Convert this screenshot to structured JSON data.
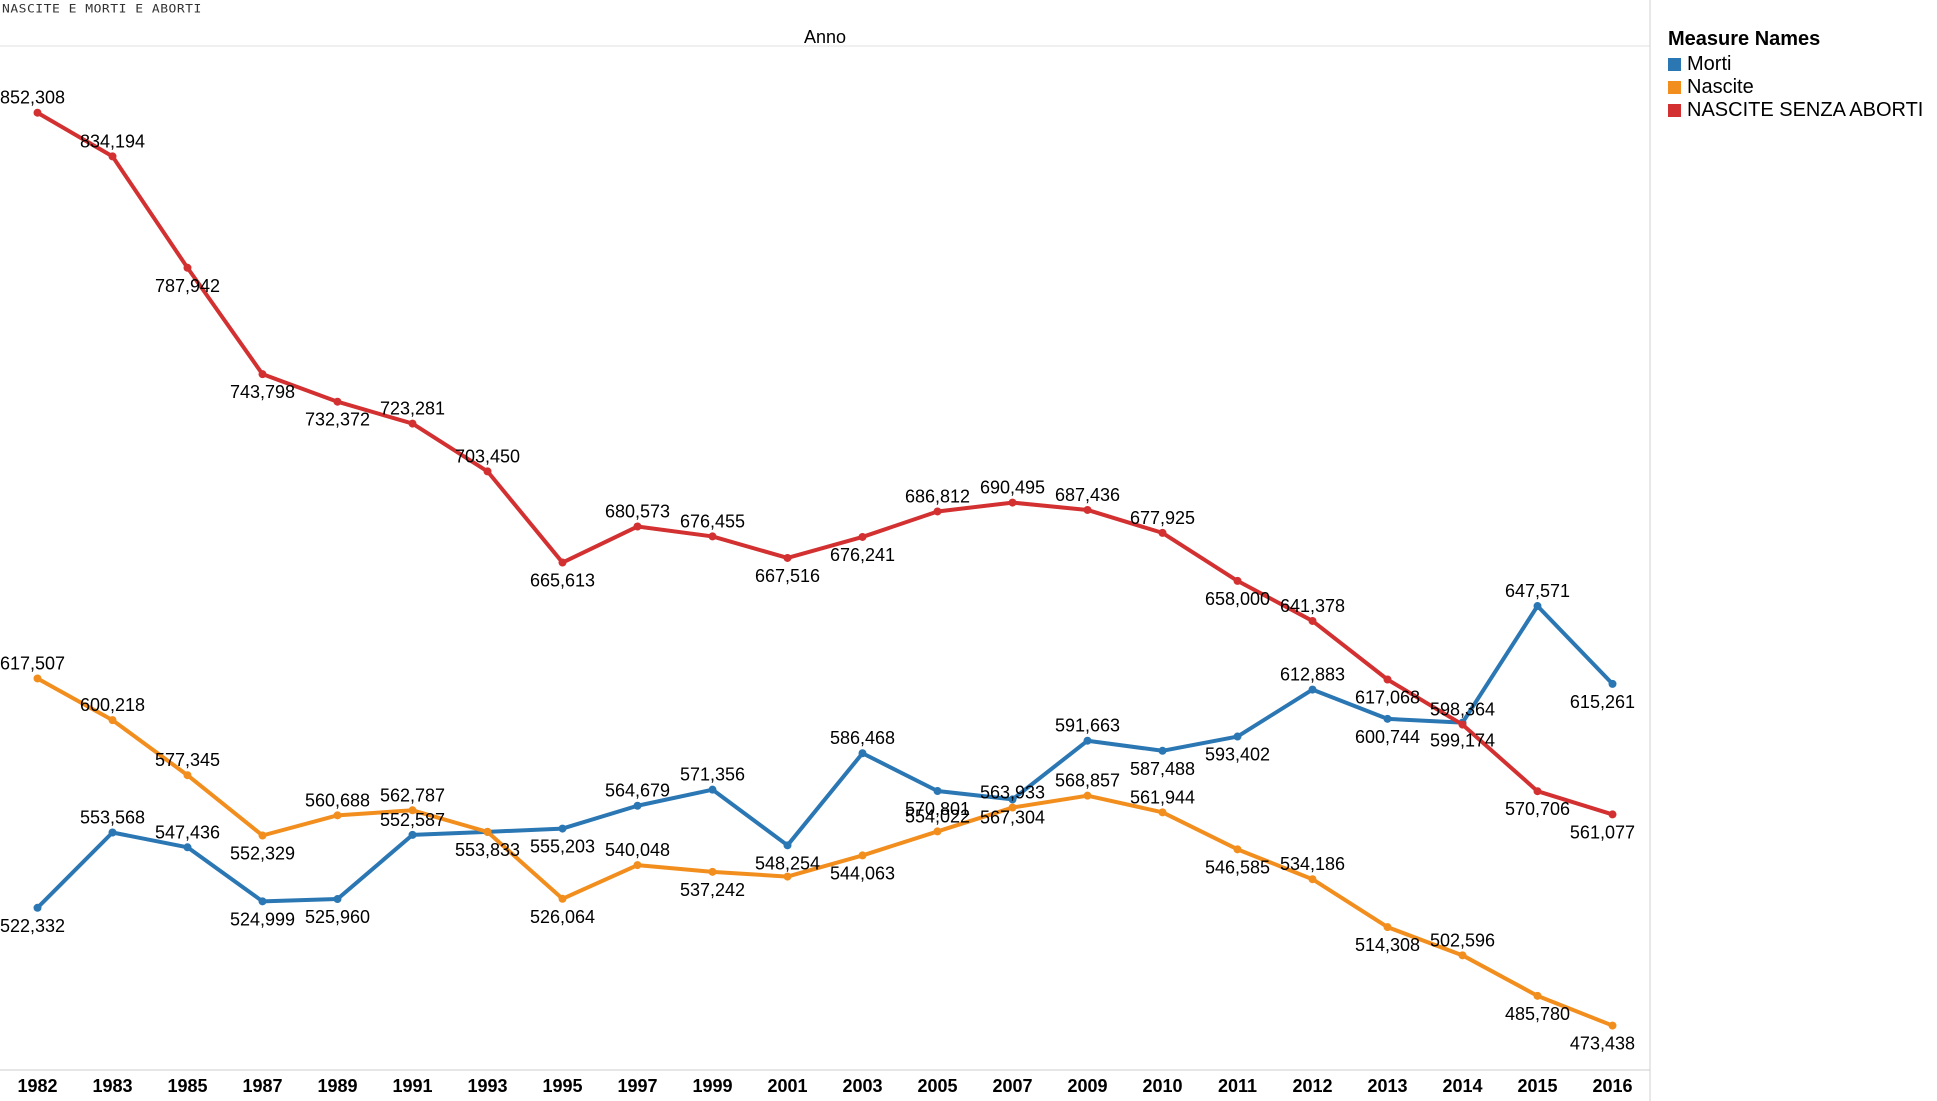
{
  "sheet_title": "NASCITE E MORTI E ABORTI",
  "chart_data": {
    "type": "line",
    "title": "",
    "column_header": "Anno",
    "xlabel": "Anno",
    "ylabel": "",
    "x": [
      "1982",
      "1983",
      "1985",
      "1987",
      "1989",
      "1991",
      "1993",
      "1995",
      "1997",
      "1999",
      "2001",
      "2003",
      "2005",
      "2007",
      "2009",
      "2010",
      "2011",
      "2012",
      "2013",
      "2014",
      "2015",
      "2016"
    ],
    "ylim": [
      455000,
      880000
    ],
    "grid": false,
    "legend_position": "top-right",
    "legend_title": "Measure Names",
    "series": [
      {
        "name": "Morti",
        "color": "#2a77b4",
        "values": [
          522332,
          553568,
          547436,
          524999,
          525960,
          552587,
          553833,
          555203,
          564679,
          571356,
          548254,
          586468,
          570801,
          567304,
          591663,
          587488,
          593402,
          612883,
          600744,
          599174,
          647571,
          615261
        ],
        "labels": [
          "522,332",
          "553,568",
          "547,436",
          "524,999",
          "525,960",
          "552,587",
          "553,833",
          "555,203",
          "564,679",
          "571,356",
          "548,254",
          "586,468",
          "570,801",
          "567,304",
          "591,663",
          "587,488",
          "593,402",
          "612,883",
          "600,744",
          "599,174",
          "647,571",
          "615,261"
        ]
      },
      {
        "name": "Nascite",
        "color": "#f28e1d",
        "values": [
          617507,
          600218,
          577345,
          552329,
          560688,
          562787,
          553833,
          526064,
          540048,
          537242,
          535282,
          544063,
          554022,
          563933,
          568857,
          561944,
          546585,
          534186,
          514308,
          502596,
          485780,
          473438
        ],
        "labels": [
          "617,507",
          "600,218",
          "577,345",
          "552,329",
          "560,688",
          "562,787",
          "",
          "526,064",
          "540,048",
          "537,242",
          "",
          "544,063",
          "554,022",
          "563,933",
          "568,857",
          "561,944",
          "546,585",
          "534,186",
          "514,308",
          "502,596",
          "485,780",
          "473,438"
        ]
      },
      {
        "name": "NASCITE SENZA ABORTI",
        "color": "#d33131",
        "values": [
          852308,
          834194,
          787942,
          743798,
          732372,
          723281,
          703450,
          665613,
          680573,
          676455,
          667516,
          676241,
          686812,
          690495,
          687436,
          677925,
          658000,
          641378,
          617068,
          598364,
          570706,
          561077
        ],
        "labels": [
          "852,308",
          "834,194",
          "787,942",
          "743,798",
          "732,372",
          "723,281",
          "703,450",
          "665,613",
          "680,573",
          "676,455",
          "667,516",
          "676,241",
          "686,812",
          "690,495",
          "687,436",
          "677,925",
          "658,000",
          "641,378",
          "617,068",
          "598,364",
          "570,706",
          "561,077"
        ]
      }
    ]
  }
}
